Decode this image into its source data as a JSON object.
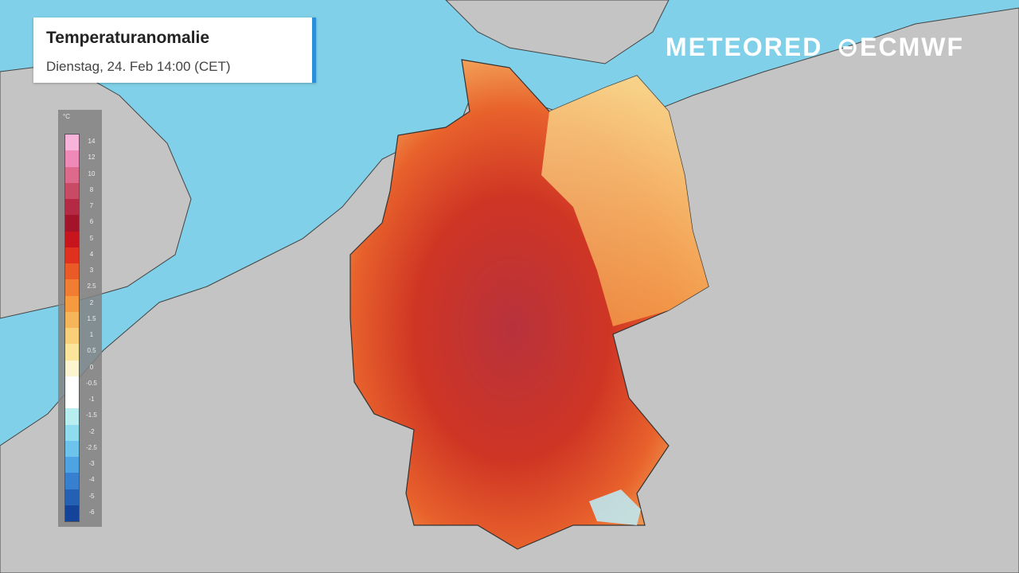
{
  "header": {
    "title": "Temperaturanomalie",
    "subtitle": "Dienstag, 24. Feb 14:00 (CET)"
  },
  "logos": {
    "meteored": "METEORED",
    "ecmwf": "ECMWF"
  },
  "legend": {
    "unit": "°C",
    "labels": [
      "14",
      "12",
      "10",
      "8",
      "7",
      "6",
      "5",
      "4",
      "3",
      "2.5",
      "2",
      "1.5",
      "1",
      "0.5",
      "0",
      "-0.5",
      "-1",
      "-1.5",
      "-2",
      "-2.5",
      "-3",
      "-4",
      "-5",
      "-6"
    ],
    "colors": [
      "#f7b3d9",
      "#ef8ab8",
      "#dd6a8c",
      "#c84a64",
      "#b42a44",
      "#a3132a",
      "#c8141c",
      "#e0301e",
      "#ea5a26",
      "#f17d32",
      "#f59a3e",
      "#f7b55a",
      "#f9cf78",
      "#fbe59a",
      "#fdf5d0",
      "#ffffff",
      "#ffffff",
      "#b8eef0",
      "#8fdcee",
      "#6cc4ec",
      "#4ea4e2",
      "#3780d0",
      "#2460b4",
      "#13449a"
    ]
  },
  "colors": {
    "sea": "#7fd0e8",
    "land": "#c4c4c4",
    "anomaly_high": "#b42a44",
    "anomaly_mid": "#e0301e",
    "anomaly_low": "#f9cf78"
  }
}
